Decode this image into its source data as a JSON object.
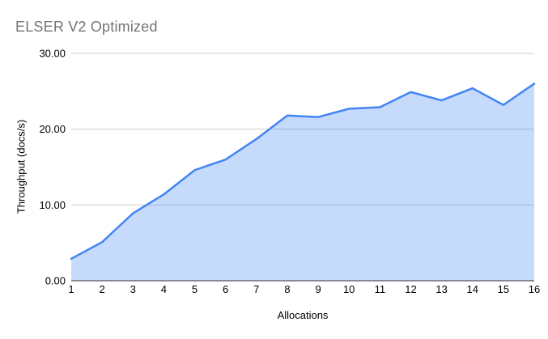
{
  "chart_data": {
    "type": "area",
    "title": "ELSER V2 Optimized",
    "xlabel": "Allocations",
    "ylabel": "Throughput (docs/s)",
    "categories": [
      "1",
      "2",
      "3",
      "4",
      "5",
      "6",
      "7",
      "8",
      "9",
      "10",
      "11",
      "12",
      "13",
      "14",
      "15",
      "16"
    ],
    "values": [
      2.9,
      5.1,
      8.9,
      11.4,
      14.6,
      16.0,
      18.7,
      21.8,
      21.6,
      22.7,
      22.9,
      24.9,
      23.8,
      25.4,
      23.2,
      26.0
    ],
    "series_name": "Throughput (docs/s)",
    "ylim": [
      0,
      30
    ],
    "y_ticks": [
      {
        "value": 0,
        "label": "0.00"
      },
      {
        "value": 10,
        "label": "10.00"
      },
      {
        "value": 20,
        "label": "20.00"
      },
      {
        "value": 30,
        "label": "30.00"
      }
    ],
    "grid": true,
    "legend_position": "none",
    "colors": {
      "line": "#4285f4",
      "area_fill": "rgba(66,133,244,0.30)",
      "gridline": "#cccccc",
      "axis_line": "#333333",
      "tick_text": "#000000",
      "title_text": "#757575",
      "background": "#ffffff"
    }
  }
}
